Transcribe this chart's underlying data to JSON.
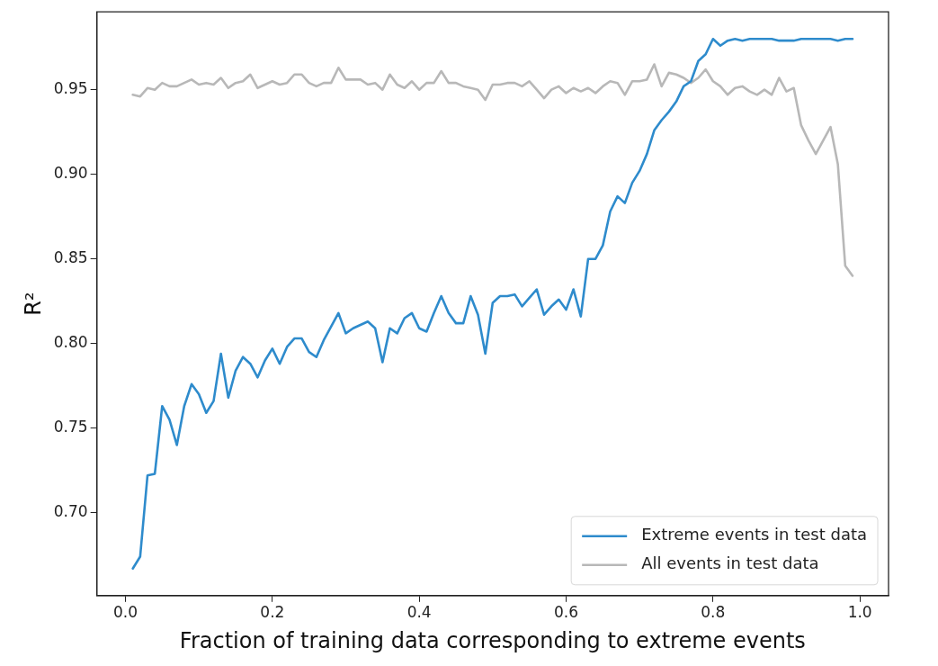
{
  "chart_data": {
    "type": "line",
    "xlabel": "Fraction of training data corresponding to extreme events",
    "ylabel": "R²",
    "x": [
      0.01,
      0.02,
      0.03,
      0.04,
      0.05,
      0.06,
      0.07,
      0.08,
      0.09,
      0.1,
      0.11,
      0.12,
      0.13,
      0.14,
      0.15,
      0.16,
      0.17,
      0.18,
      0.19,
      0.2,
      0.21,
      0.22,
      0.23,
      0.24,
      0.25,
      0.26,
      0.27,
      0.28,
      0.29,
      0.3,
      0.31,
      0.32,
      0.33,
      0.34,
      0.35,
      0.36,
      0.37,
      0.38,
      0.39,
      0.4,
      0.41,
      0.42,
      0.43,
      0.44,
      0.45,
      0.46,
      0.47,
      0.48,
      0.49,
      0.5,
      0.51,
      0.52,
      0.53,
      0.54,
      0.55,
      0.56,
      0.57,
      0.58,
      0.59,
      0.6,
      0.61,
      0.62,
      0.63,
      0.64,
      0.65,
      0.66,
      0.67,
      0.68,
      0.69,
      0.7,
      0.71,
      0.72,
      0.73,
      0.74,
      0.75,
      0.76,
      0.77,
      0.78,
      0.79,
      0.8,
      0.81,
      0.82,
      0.83,
      0.84,
      0.85,
      0.86,
      0.87,
      0.88,
      0.89,
      0.9,
      0.91,
      0.92,
      0.93,
      0.94,
      0.95,
      0.96,
      0.97,
      0.98,
      0.99
    ],
    "series": [
      {
        "name": "Extreme events in test data",
        "color": "#2e8bcc",
        "values": [
          0.667,
          0.674,
          0.722,
          0.723,
          0.763,
          0.755,
          0.74,
          0.763,
          0.776,
          0.77,
          0.759,
          0.766,
          0.794,
          0.768,
          0.784,
          0.792,
          0.788,
          0.78,
          0.79,
          0.797,
          0.788,
          0.798,
          0.803,
          0.803,
          0.795,
          0.792,
          0.802,
          0.81,
          0.818,
          0.806,
          0.809,
          0.811,
          0.813,
          0.809,
          0.789,
          0.809,
          0.806,
          0.815,
          0.818,
          0.809,
          0.807,
          0.818,
          0.828,
          0.818,
          0.812,
          0.812,
          0.828,
          0.817,
          0.794,
          0.824,
          0.828,
          0.828,
          0.829,
          0.822,
          0.827,
          0.832,
          0.817,
          0.822,
          0.826,
          0.82,
          0.832,
          0.816,
          0.85,
          0.85,
          0.858,
          0.878,
          0.887,
          0.883,
          0.895,
          0.902,
          0.912,
          0.926,
          0.932,
          0.937,
          0.943,
          0.952,
          0.955,
          0.967,
          0.971,
          0.98,
          0.976,
          0.979,
          0.98,
          0.979,
          0.98,
          0.98,
          0.98,
          0.98,
          0.979,
          0.979,
          0.979,
          0.98,
          0.98,
          0.98,
          0.98,
          0.98,
          0.979,
          0.98,
          0.98
        ]
      },
      {
        "name": "All events in test data",
        "color": "#b8b8b8",
        "values": [
          0.947,
          0.946,
          0.951,
          0.95,
          0.954,
          0.952,
          0.952,
          0.954,
          0.956,
          0.953,
          0.954,
          0.953,
          0.957,
          0.951,
          0.954,
          0.955,
          0.959,
          0.951,
          0.953,
          0.955,
          0.953,
          0.954,
          0.959,
          0.959,
          0.954,
          0.952,
          0.954,
          0.954,
          0.963,
          0.956,
          0.956,
          0.956,
          0.953,
          0.954,
          0.95,
          0.959,
          0.953,
          0.951,
          0.955,
          0.95,
          0.954,
          0.954,
          0.961,
          0.954,
          0.954,
          0.952,
          0.951,
          0.95,
          0.944,
          0.953,
          0.953,
          0.954,
          0.954,
          0.952,
          0.955,
          0.95,
          0.945,
          0.95,
          0.952,
          0.948,
          0.951,
          0.949,
          0.951,
          0.948,
          0.952,
          0.955,
          0.954,
          0.947,
          0.955,
          0.955,
          0.956,
          0.965,
          0.952,
          0.96,
          0.959,
          0.957,
          0.954,
          0.957,
          0.962,
          0.955,
          0.952,
          0.947,
          0.951,
          0.952,
          0.949,
          0.947,
          0.95,
          0.947,
          0.957,
          0.949,
          0.951,
          0.929,
          0.92,
          0.912,
          0.92,
          0.928,
          0.906,
          0.846,
          0.84
        ]
      }
    ],
    "xlim": [
      -0.039,
      1.039
    ],
    "xticks": [
      {
        "value": 0,
        "label": "0.0"
      },
      0.2,
      0.4,
      0.6,
      0.8,
      {
        "value": 1,
        "label": "1.0"
      }
    ],
    "ylim": [
      0.651,
      0.996
    ],
    "yticks": [
      {
        "value": 0.7,
        "label": "0.70"
      },
      0.75,
      {
        "value": 0.8,
        "label": "0.80"
      },
      0.85,
      {
        "value": 0.9,
        "label": "0.90"
      },
      0.95
    ],
    "grid": false,
    "legend": "bottom right",
    "marker": "none",
    "line_style": "solid"
  }
}
